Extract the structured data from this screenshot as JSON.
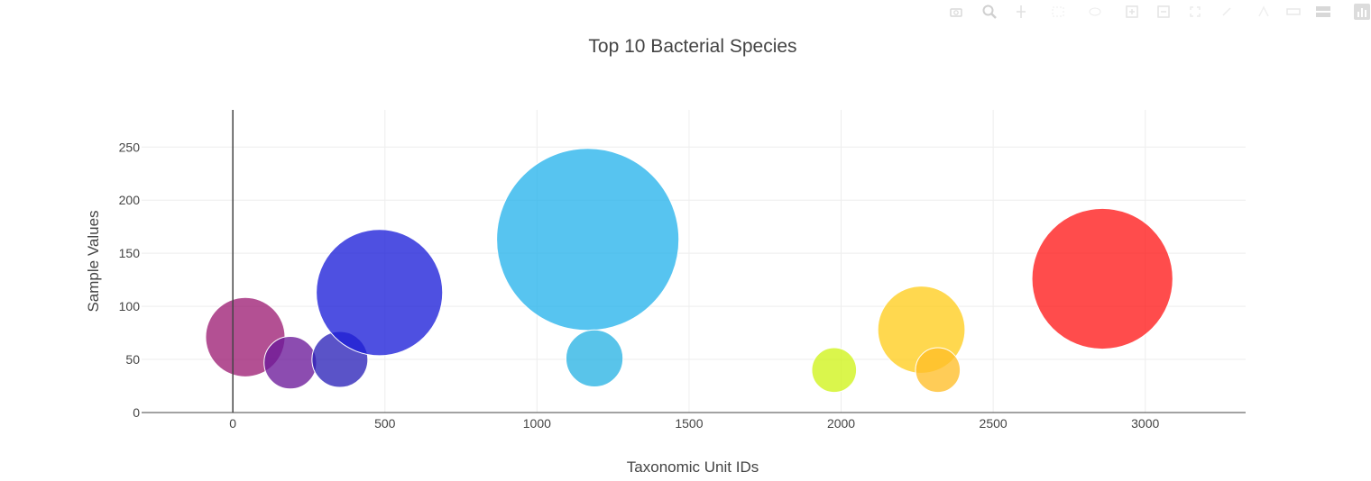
{
  "modebar": {
    "buttons": [
      {
        "name": "camera-icon"
      },
      {
        "name": "zoom-icon"
      },
      {
        "name": "pan-icon"
      },
      {
        "name": "box-select-icon"
      },
      {
        "name": "lasso-select-icon"
      },
      {
        "name": "zoom-in-icon"
      },
      {
        "name": "zoom-out-icon"
      },
      {
        "name": "autoscale-icon"
      },
      {
        "name": "reset-axes-icon"
      },
      {
        "name": "spike-lines-icon"
      },
      {
        "name": "hover-closest-icon"
      },
      {
        "name": "hover-compare-icon"
      },
      {
        "name": "plotly-logo-icon"
      }
    ]
  },
  "chart_data": {
    "type": "scatter",
    "title": "Top 10 Bacterial Species",
    "xlabel": "Taxonomic Unit IDs",
    "ylabel": "Sample Values",
    "xlim": [
      -300,
      3330
    ],
    "ylim": [
      0,
      285
    ],
    "xticks": [
      0,
      500,
      1000,
      1500,
      2000,
      2500,
      3000
    ],
    "yticks": [
      0,
      50,
      100,
      150,
      200,
      250
    ],
    "grid": true,
    "points": [
      {
        "x": 41,
        "y": 71,
        "size": 71,
        "color": "#9e1f74"
      },
      {
        "x": 189,
        "y": 47,
        "size": 47,
        "color": "#6c1a9a"
      },
      {
        "x": 352,
        "y": 50,
        "size": 50,
        "color": "#2c23b8"
      },
      {
        "x": 482,
        "y": 113,
        "size": 113,
        "color": "#1c1fd8"
      },
      {
        "x": 1167,
        "y": 163,
        "size": 163,
        "color": "#28b4ec"
      },
      {
        "x": 1189,
        "y": 51,
        "size": 51,
        "color": "#2ab4e4"
      },
      {
        "x": 1977,
        "y": 40,
        "size": 40,
        "color": "#d0f419"
      },
      {
        "x": 2264,
        "y": 78,
        "size": 78,
        "color": "#ffcd1e"
      },
      {
        "x": 2318,
        "y": 40,
        "size": 40,
        "color": "#ffbe28"
      },
      {
        "x": 2859,
        "y": 126,
        "size": 126,
        "color": "#ff1a1a"
      }
    ]
  }
}
